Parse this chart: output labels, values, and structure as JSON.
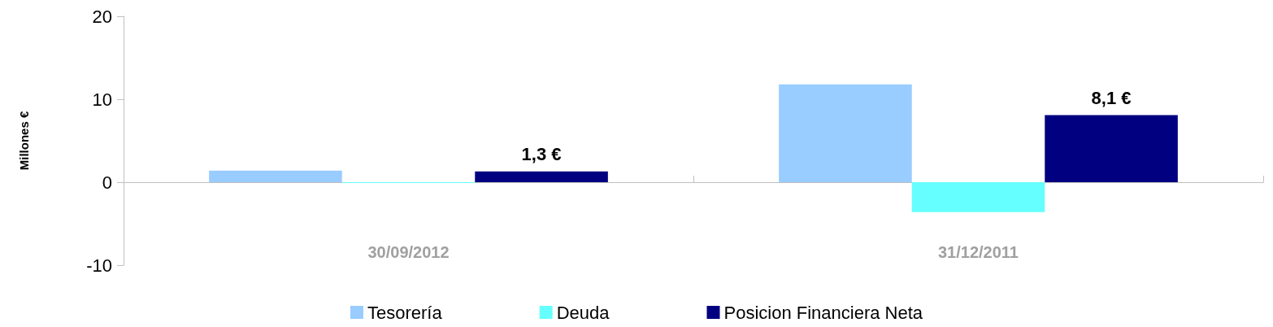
{
  "chart_data": {
    "type": "bar",
    "ylabel": "Millones €",
    "categories": [
      "30/09/2012",
      "31/12/2011"
    ],
    "series": [
      {
        "name": "Tesorería",
        "color": "#99ccff",
        "values": [
          1.4,
          11.8
        ]
      },
      {
        "name": "Deuda",
        "color": "#66ffff",
        "values": [
          -0.1,
          -3.6
        ]
      },
      {
        "name": "Posicion Financiera Neta",
        "color": "#000080",
        "values": [
          1.3,
          8.1
        ],
        "value_labels": [
          "1,3 €",
          "8,1 €"
        ]
      }
    ],
    "ylim": [
      -10,
      20
    ],
    "yticks": [
      -10,
      0,
      10,
      20
    ],
    "legend": "bottom"
  }
}
